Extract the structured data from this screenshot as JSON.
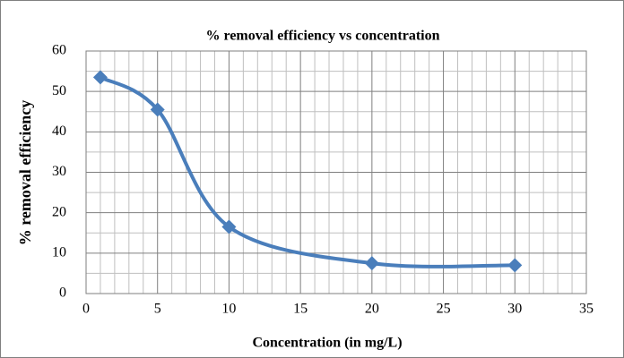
{
  "chart_data": {
    "type": "line",
    "title": "% removal efficiency vs concentration",
    "x_label": "Concentration  (in mg/L)",
    "y_label": "% removal  efficiency",
    "series": [
      {
        "color": "#4a7ebb",
        "x": [
          1,
          5,
          10,
          20,
          30
        ],
        "values": [
          53.5,
          45.5,
          16.5,
          7.5,
          7
        ]
      }
    ],
    "xlim": [
      0,
      35
    ],
    "xticks": [
      0,
      5,
      10,
      15,
      20,
      25,
      30,
      35
    ],
    "ylim": [
      0,
      60
    ],
    "yticks": [
      0,
      10,
      20,
      30,
      40,
      50,
      60
    ],
    "grid": true,
    "smooth": true,
    "marker": "diamond"
  }
}
